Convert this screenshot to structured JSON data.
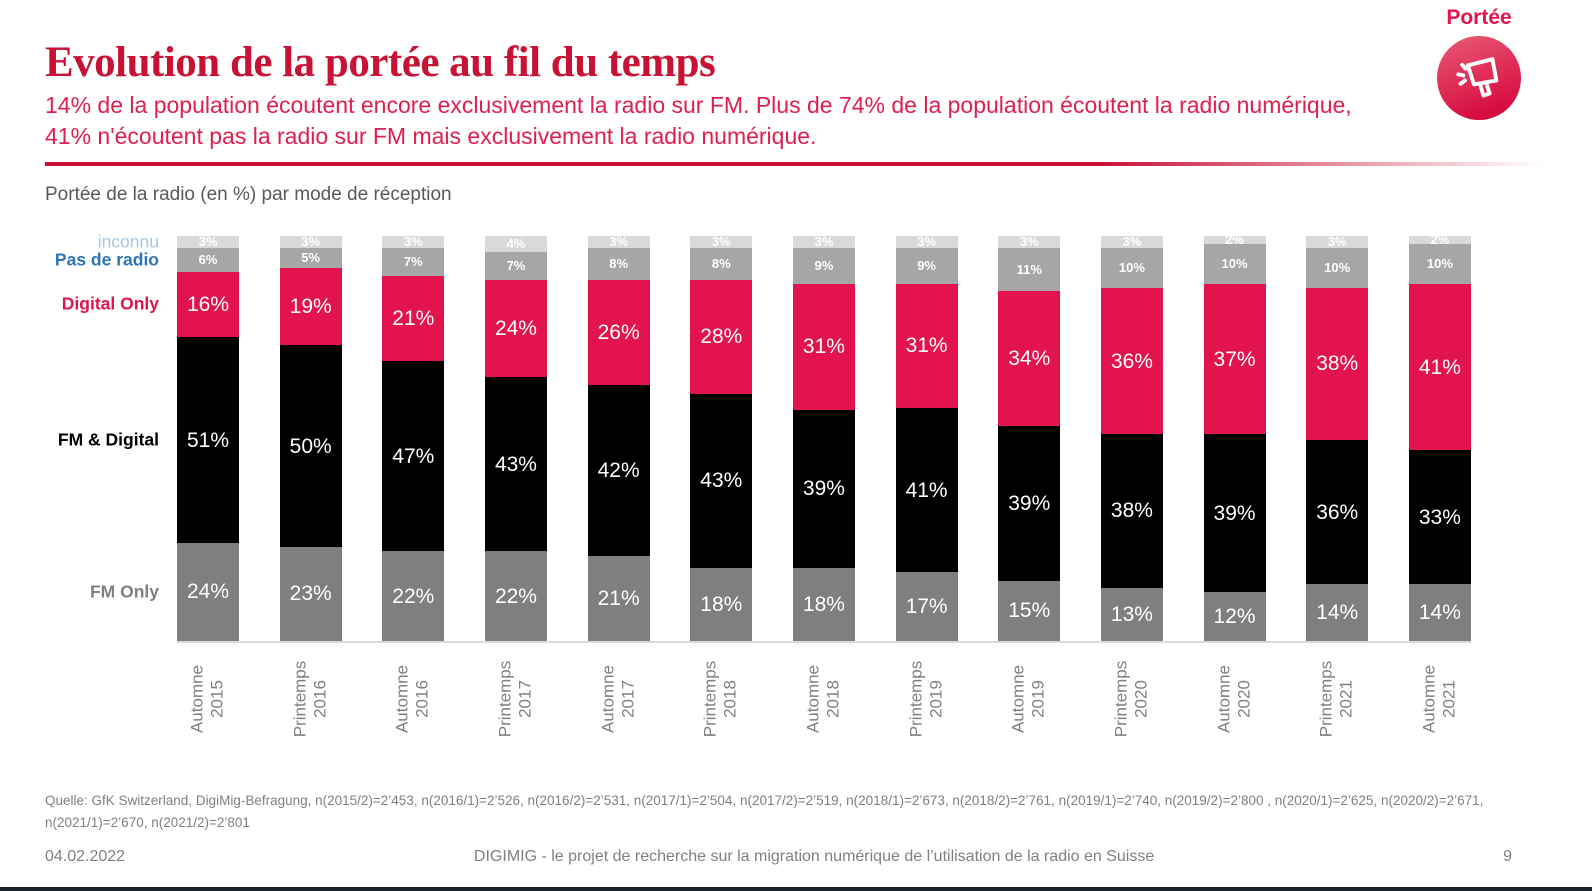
{
  "page": {
    "title": "Evolution de la portée au fil du temps",
    "subtitle": "14% de la population écoutent encore exclusivement la radio sur FM. Plus de 74% de la population écoutent la radio numérique, 41% n'écoutent pas la radio sur FM mais exclusivement la radio numérique.",
    "badge": {
      "label": "Portée",
      "icon": "megaphone-icon"
    },
    "chart_caption": "Portée de la radio (en %) par mode de réception",
    "source_line1": "Quelle:  GfK Switzerland, DigiMig-Befragung,   n(2015/2)=2’453, n(2016/1)=2’526, n(2016/2)=2’531, n(2017/1)=2’504, n(2017/2)=2’519, n(2018/1)=2’673, n(2018/2)=2’761, n(2019/1)=2’740, n(2019/2)=2’800 , n(2020/1)=2’625, n(2020/2)=2’671,",
    "source_line2": "n(2021/1)=2’670, n(2021/2)=2’801",
    "footer": {
      "date": "04.02.2022",
      "center": "DIGIMIG - le projet de recherche sur la migration numérique de l’utilisation de la radio en Suisse",
      "page_number": "9"
    }
  },
  "colors": {
    "title_red": "#C81235",
    "subtitle_red": "#E01E4F",
    "bar_red": "#E3134E",
    "inconnu_gray": "#D9D9D9",
    "pas_de_radio_gray": "#A6A6A6",
    "fm_only_gray": "#7F7F7F",
    "fm_digital_black": "#000000",
    "legend_inconnu_blue": "#A8C6E4",
    "legend_pas_de_radio_blue": "#2E75B6",
    "axis_label_gray": "#808080",
    "caption_gray": "#595959",
    "footer_bar_dark": "#18222B"
  },
  "chart_data": {
    "type": "bar",
    "stacked": true,
    "stack_order": "top_to_bottom",
    "unit": "%",
    "title": "Portée de la radio (en %) par mode de réception",
    "legend_position": "left",
    "grid": false,
    "ylim": [
      0,
      100
    ],
    "categories": [
      "Automne 2015",
      "Printemps 2016",
      "Automne 2016",
      "Printemps 2017",
      "Automne 2017",
      "Printemps 2018",
      "Automne 2018",
      "Printemps 2019",
      "Automne 2019",
      "Printemps 2020",
      "Automne 2020",
      "Printemps 2021",
      "Automne 2021"
    ],
    "series": [
      {
        "name": "inconnu",
        "color": "#D9D9D9",
        "legend_color": "#A8C6E4",
        "small_label": true,
        "values": [
          3,
          3,
          3,
          4,
          3,
          3,
          3,
          3,
          3,
          3,
          2,
          3,
          2
        ]
      },
      {
        "name": "Pas de radio",
        "color": "#A6A6A6",
        "legend_color": "#2E75B6",
        "small_label": true,
        "values": [
          6,
          5,
          7,
          7,
          8,
          8,
          9,
          9,
          11,
          10,
          10,
          10,
          10
        ]
      },
      {
        "name": "Digital Only",
        "color": "#E3134E",
        "legend_color": "#E3134E",
        "small_label": false,
        "values": [
          16,
          19,
          21,
          24,
          26,
          28,
          31,
          31,
          34,
          36,
          37,
          38,
          41
        ]
      },
      {
        "name": "FM & Digital",
        "color": "#000000",
        "legend_color": "#000000",
        "small_label": false,
        "values": [
          51,
          50,
          47,
          43,
          42,
          43,
          39,
          41,
          39,
          38,
          39,
          36,
          33
        ]
      },
      {
        "name": "FM Only",
        "color": "#7F7F7F",
        "legend_color": "#7F7F7F",
        "small_label": false,
        "values": [
          24,
          23,
          22,
          22,
          21,
          18,
          18,
          17,
          15,
          13,
          12,
          14,
          14
        ]
      }
    ]
  }
}
